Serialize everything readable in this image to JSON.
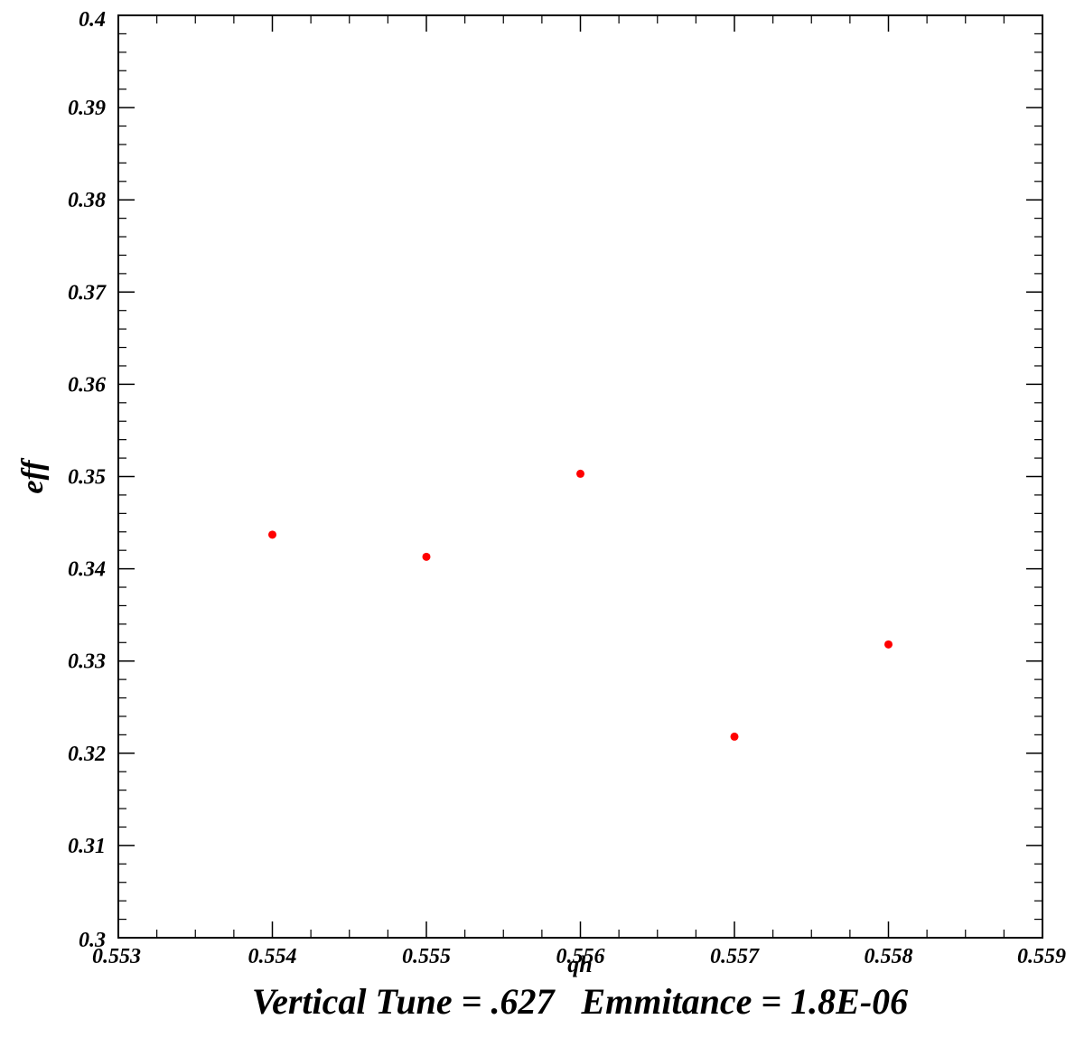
{
  "chart_data": {
    "type": "scatter",
    "xlabel": "qh",
    "ylabel": "eff",
    "caption": "Vertical Tune = .627   Emmitance = 1.8E-06",
    "xlim": [
      0.553,
      0.559
    ],
    "ylim": [
      0.3,
      0.4
    ],
    "x_ticks": [
      "0.553",
      "0.554",
      "0.555",
      "0.556",
      "0.557",
      "0.558",
      "0.559"
    ],
    "y_ticks": [
      "0.3",
      "0.31",
      "0.32",
      "0.33",
      "0.34",
      "0.35",
      "0.36",
      "0.37",
      "0.38",
      "0.39",
      "0.4"
    ],
    "grid": false,
    "marker_color": "#ff0000",
    "points": [
      {
        "x": 0.554,
        "y": 0.3437
      },
      {
        "x": 0.555,
        "y": 0.3413
      },
      {
        "x": 0.556,
        "y": 0.3503
      },
      {
        "x": 0.557,
        "y": 0.3218
      },
      {
        "x": 0.558,
        "y": 0.3318
      }
    ]
  }
}
